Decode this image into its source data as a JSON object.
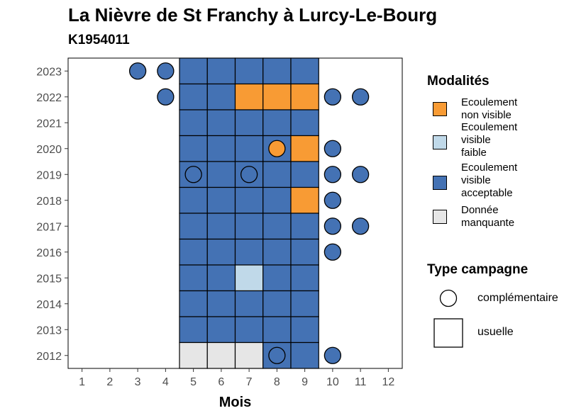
{
  "title": "La Nièvre de St Franchy à Lurcy-Le-Bourg",
  "subtitle": "K1954011",
  "colors": {
    "ecoulement_non_visible": "#f89b34",
    "ecoulement_visible_faible": "#c0d9e9",
    "ecoulement_visible_acceptable": "#4472b4",
    "donnee_manquante": "#e6e6e6"
  },
  "legend": {
    "modalites_title": "Modalités",
    "modalites": [
      {
        "key": "ecoulement_non_visible",
        "lines": [
          "Ecoulement",
          "non visible"
        ]
      },
      {
        "key": "ecoulement_visible_faible",
        "lines": [
          "Ecoulement",
          "visible",
          "faible"
        ]
      },
      {
        "key": "ecoulement_visible_acceptable",
        "lines": [
          "Ecoulement",
          "visible",
          "acceptable"
        ]
      },
      {
        "key": "donnee_manquante",
        "lines": [
          "Donnée",
          "manquante"
        ]
      }
    ],
    "type_title": "Type campagne",
    "types": [
      {
        "key": "complementaire",
        "label": "complémentaire"
      },
      {
        "key": "usuelle",
        "label": "usuelle"
      }
    ]
  },
  "chart_data": {
    "type": "heatmap",
    "xlabel": "Mois",
    "ylabel": "",
    "x_ticks": [
      1,
      2,
      3,
      4,
      5,
      6,
      7,
      8,
      9,
      10,
      11,
      12
    ],
    "y_ticks": [
      2012,
      2013,
      2014,
      2015,
      2016,
      2017,
      2018,
      2019,
      2020,
      2021,
      2022,
      2023
    ],
    "xlim": [
      0.5,
      12.5
    ],
    "ylim": [
      2011.5,
      2023.5
    ],
    "grid": false,
    "legend_position": "right",
    "usuelle": [
      {
        "year": 2023,
        "months": [
          "A",
          "A",
          "A",
          "A",
          "A"
        ]
      },
      {
        "year": 2022,
        "months": [
          "A",
          "A",
          "N",
          "N",
          "N"
        ]
      },
      {
        "year": 2021,
        "months": [
          "A",
          "A",
          "A",
          "A",
          "A"
        ]
      },
      {
        "year": 2020,
        "months": [
          "A",
          "A",
          "A",
          "A",
          "N"
        ]
      },
      {
        "year": 2019,
        "months": [
          "A",
          "A",
          "A",
          "A",
          "A"
        ]
      },
      {
        "year": 2018,
        "months": [
          "A",
          "A",
          "A",
          "A",
          "N"
        ]
      },
      {
        "year": 2017,
        "months": [
          "A",
          "A",
          "A",
          "A",
          "A"
        ]
      },
      {
        "year": 2016,
        "months": [
          "A",
          "A",
          "A",
          "A",
          "A"
        ]
      },
      {
        "year": 2015,
        "months": [
          "A",
          "A",
          "F",
          "A",
          "A"
        ]
      },
      {
        "year": 2014,
        "months": [
          "A",
          "A",
          "A",
          "A",
          "A"
        ]
      },
      {
        "year": 2013,
        "months": [
          "A",
          "A",
          "A",
          "A",
          "A"
        ]
      },
      {
        "year": 2012,
        "months": [
          "M",
          "M",
          "M",
          "A",
          "A"
        ]
      }
    ],
    "usuelle_first_month": 5,
    "code_map": {
      "A": "ecoulement_visible_acceptable",
      "N": "ecoulement_non_visible",
      "F": "ecoulement_visible_faible",
      "M": "donnee_manquante"
    },
    "complementaire": [
      {
        "year": 2023,
        "month": 3,
        "value": "ecoulement_visible_acceptable"
      },
      {
        "year": 2023,
        "month": 4,
        "value": "ecoulement_visible_acceptable"
      },
      {
        "year": 2022,
        "month": 4,
        "value": "ecoulement_visible_acceptable"
      },
      {
        "year": 2022,
        "month": 10,
        "value": "ecoulement_visible_acceptable"
      },
      {
        "year": 2022,
        "month": 11,
        "value": "ecoulement_visible_acceptable"
      },
      {
        "year": 2020,
        "month": 8,
        "value": "ecoulement_non_visible"
      },
      {
        "year": 2020,
        "month": 10,
        "value": "ecoulement_visible_acceptable"
      },
      {
        "year": 2019,
        "month": 5,
        "value": "ecoulement_visible_acceptable"
      },
      {
        "year": 2019,
        "month": 7,
        "value": "ecoulement_visible_acceptable"
      },
      {
        "year": 2019,
        "month": 10,
        "value": "ecoulement_visible_acceptable"
      },
      {
        "year": 2019,
        "month": 11,
        "value": "ecoulement_visible_acceptable"
      },
      {
        "year": 2018,
        "month": 10,
        "value": "ecoulement_visible_acceptable"
      },
      {
        "year": 2017,
        "month": 10,
        "value": "ecoulement_visible_acceptable"
      },
      {
        "year": 2017,
        "month": 11,
        "value": "ecoulement_visible_acceptable"
      },
      {
        "year": 2016,
        "month": 10,
        "value": "ecoulement_visible_acceptable"
      },
      {
        "year": 2012,
        "month": 8,
        "value": "ecoulement_visible_acceptable"
      },
      {
        "year": 2012,
        "month": 10,
        "value": "ecoulement_visible_acceptable"
      }
    ]
  }
}
